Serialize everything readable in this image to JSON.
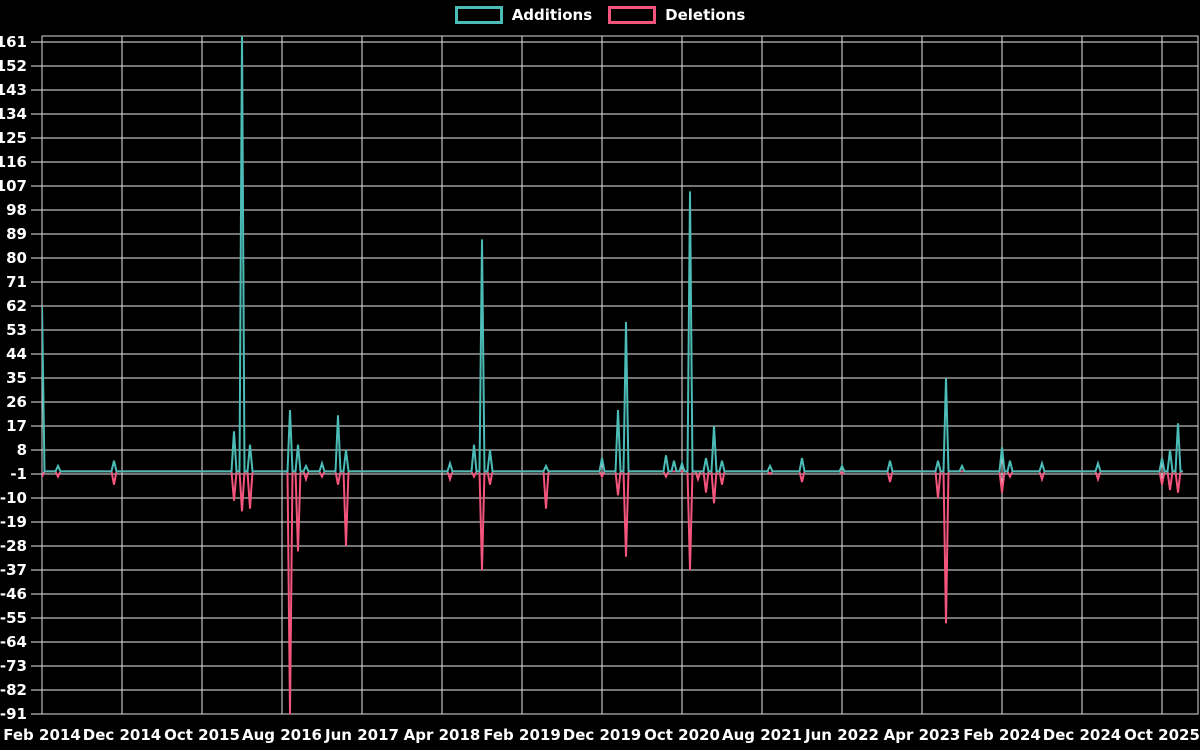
{
  "colors": {
    "background": "#000000",
    "grid": "#e8e8e8",
    "text": "#ffffff",
    "additions": "#4cbcb6",
    "deletions": "#f4557d"
  },
  "chart_data": {
    "type": "line",
    "title": "",
    "legend_position": "top-center",
    "grid": true,
    "x_tick_labels": [
      "Feb 2014",
      "Dec 2014",
      "Oct 2015",
      "Aug 2016",
      "Jun 2017",
      "Apr 2018",
      "Feb 2019",
      "Dec 2019",
      "Oct 2020",
      "Aug 2021",
      "Jun 2022",
      "Apr 2023",
      "Feb 2024",
      "Dec 2024",
      "Oct 2025"
    ],
    "months_per_tick": 10,
    "y_ticks": [
      161,
      152,
      143,
      134,
      125,
      116,
      107,
      98,
      89,
      80,
      71,
      62,
      53,
      44,
      35,
      26,
      17,
      8,
      -1,
      -10,
      -19,
      -28,
      -37,
      -46,
      -55,
      -64,
      -73,
      -82,
      -91
    ],
    "ylim": [
      -91,
      161
    ],
    "baseline": 0,
    "last_month": 142.6,
    "series": [
      {
        "name": "Additions",
        "color": "#4cbcb6",
        "points": [
          [
            0,
            62
          ],
          [
            2,
            2
          ],
          [
            9,
            4
          ],
          [
            24,
            15
          ],
          [
            25,
            164
          ],
          [
            26,
            10
          ],
          [
            31,
            23
          ],
          [
            32,
            10
          ],
          [
            33,
            2
          ],
          [
            35,
            3
          ],
          [
            37,
            21
          ],
          [
            38,
            8
          ],
          [
            51,
            3
          ],
          [
            54,
            10
          ],
          [
            55,
            87
          ],
          [
            56,
            8
          ],
          [
            63,
            2
          ],
          [
            70,
            5
          ],
          [
            72,
            23
          ],
          [
            73,
            56
          ],
          [
            78,
            6
          ],
          [
            79,
            4
          ],
          [
            80,
            3
          ],
          [
            81,
            105
          ],
          [
            83,
            5
          ],
          [
            84,
            17
          ],
          [
            85,
            4
          ],
          [
            91,
            2
          ],
          [
            95,
            5
          ],
          [
            100,
            2
          ],
          [
            106,
            4
          ],
          [
            112,
            4
          ],
          [
            113,
            35
          ],
          [
            115,
            2
          ],
          [
            120,
            9
          ],
          [
            121,
            4
          ],
          [
            125,
            3
          ],
          [
            132,
            3
          ],
          [
            140,
            5
          ],
          [
            141,
            8
          ],
          [
            142,
            18
          ]
        ]
      },
      {
        "name": "Deletions",
        "color": "#f4557d",
        "points": [
          [
            0,
            -2
          ],
          [
            2,
            -2
          ],
          [
            9,
            -5
          ],
          [
            24,
            -11
          ],
          [
            25,
            -15
          ],
          [
            26,
            -14
          ],
          [
            31,
            -91
          ],
          [
            32,
            -30
          ],
          [
            33,
            -3
          ],
          [
            35,
            -2
          ],
          [
            37,
            -5
          ],
          [
            38,
            -28
          ],
          [
            51,
            -3
          ],
          [
            54,
            -2
          ],
          [
            55,
            -37
          ],
          [
            56,
            -5
          ],
          [
            63,
            -14
          ],
          [
            70,
            -2
          ],
          [
            72,
            -9
          ],
          [
            73,
            -32
          ],
          [
            78,
            -2
          ],
          [
            81,
            -37
          ],
          [
            82,
            -3
          ],
          [
            83,
            -8
          ],
          [
            84,
            -12
          ],
          [
            85,
            -5
          ],
          [
            91,
            -1
          ],
          [
            95,
            -4
          ],
          [
            100,
            -1
          ],
          [
            106,
            -4
          ],
          [
            112,
            -10
          ],
          [
            113,
            -57
          ],
          [
            120,
            -8
          ],
          [
            121,
            -2
          ],
          [
            125,
            -3
          ],
          [
            132,
            -3
          ],
          [
            140,
            -5
          ],
          [
            141,
            -7
          ],
          [
            142,
            -8
          ]
        ]
      }
    ]
  }
}
